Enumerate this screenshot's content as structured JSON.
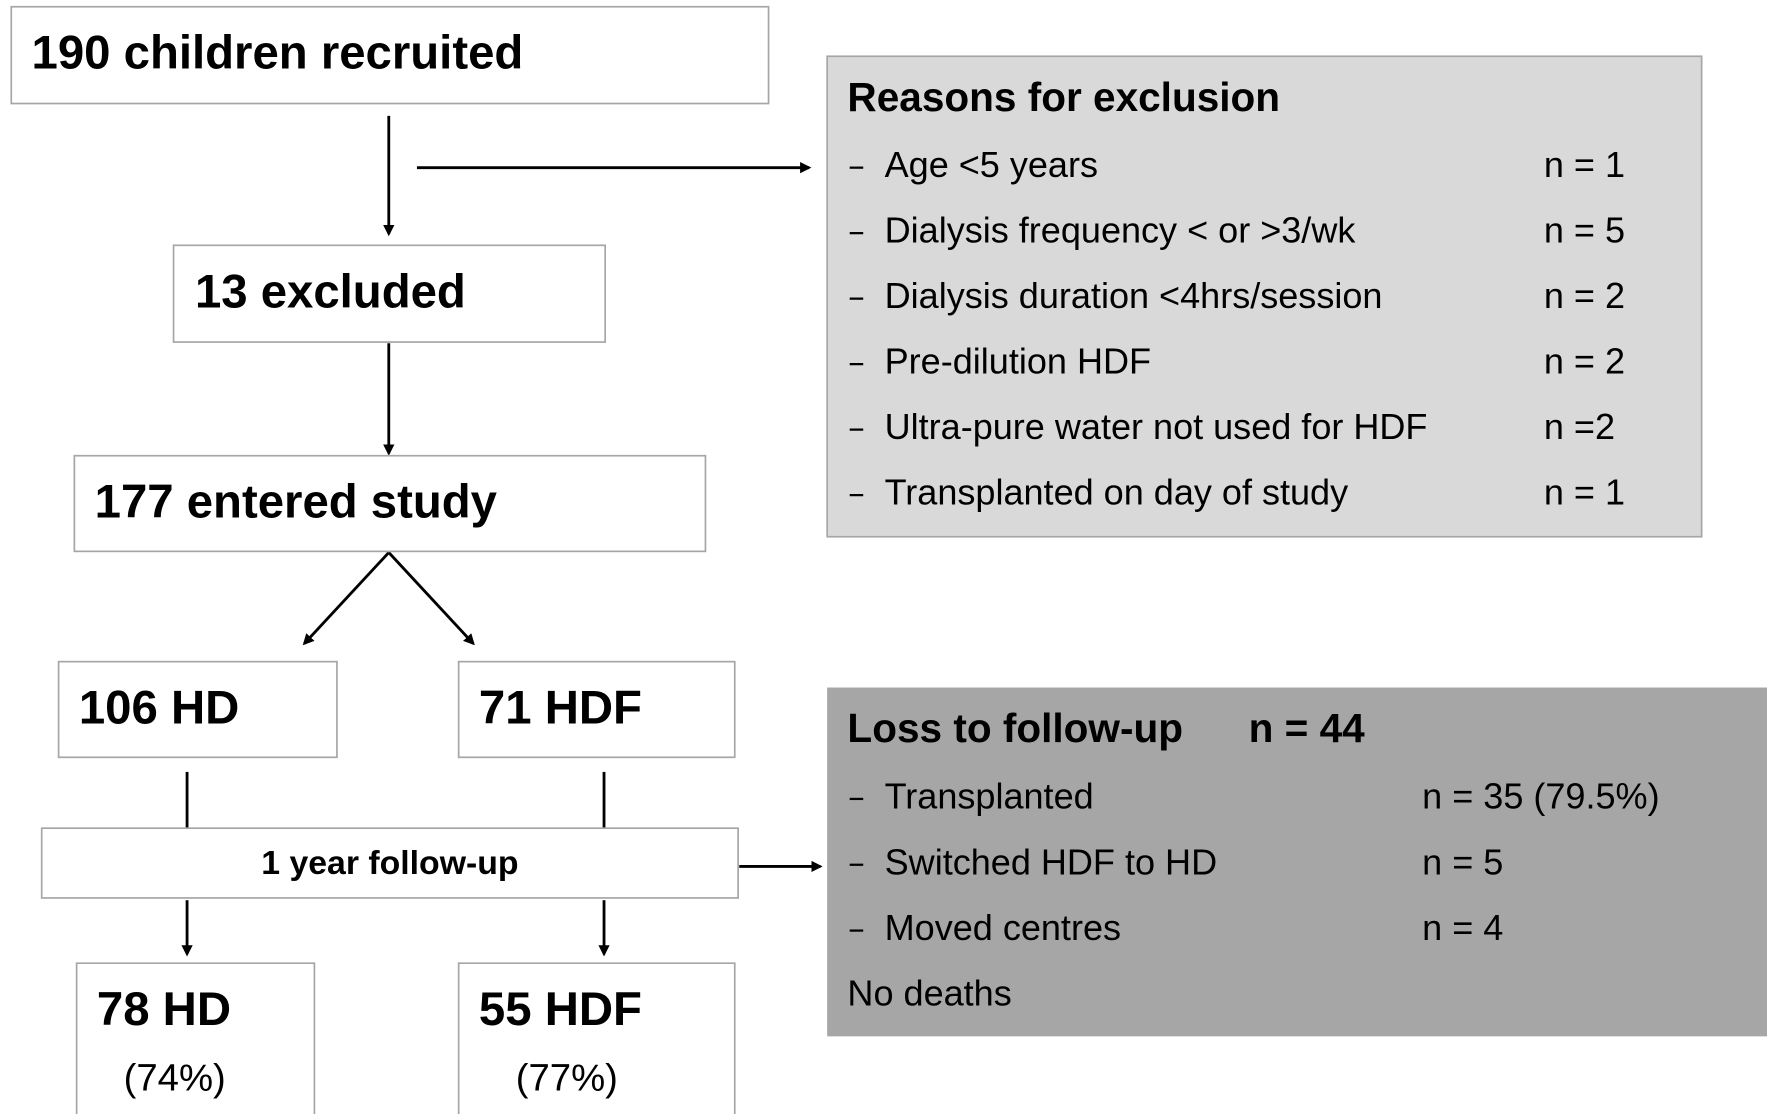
{
  "nodes": [
    {
      "label": "190 children recruited"
    },
    {
      "label": "13 excluded"
    },
    {
      "label": "177 entered study"
    },
    {
      "label": "106 HD"
    },
    {
      "label": "71 HDF"
    },
    {
      "label": "1 year follow-up"
    },
    {
      "label": "78 HD",
      "note": "(74%)"
    },
    {
      "label": "55 HDF",
      "note": "(77%)"
    }
  ],
  "exclusion": {
    "title": "Reasons for exclusion",
    "items": [
      {
        "reason": "Age <5 years",
        "count": "n = 1"
      },
      {
        "reason": "Dialysis frequency < or >3/wk",
        "count": "n = 5"
      },
      {
        "reason": "Dialysis duration <4hrs/session",
        "count": "n = 2"
      },
      {
        "reason": "Pre-dilution HDF",
        "count": "n = 2"
      },
      {
        "reason": "Ultra-pure water not used for HDF",
        "count": "n =2"
      },
      {
        "reason": "Transplanted on day of study",
        "count": "n = 1"
      }
    ]
  },
  "loss": {
    "title": "Loss to follow-up",
    "count": "n = 44",
    "items": [
      {
        "reason": "Transplanted",
        "count": "n = 35 (79.5%)"
      },
      {
        "reason": "Switched HDF to HD",
        "count": "n = 5"
      },
      {
        "reason": "Moved centres",
        "count": "n = 4"
      }
    ],
    "footer": "No deaths"
  }
}
